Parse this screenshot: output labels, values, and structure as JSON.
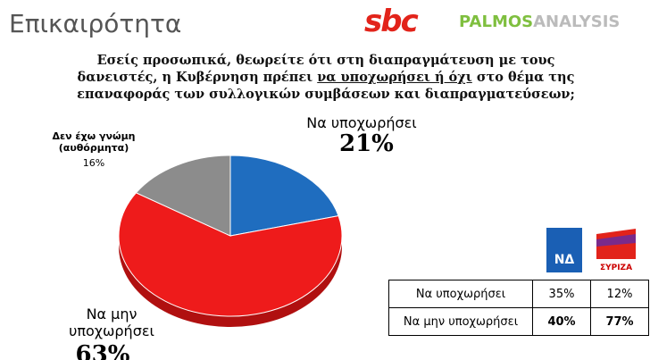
{
  "header": {
    "title": "Επικαιρότητα",
    "logo_left": "sbc",
    "logo_right_a": "PALMOS",
    "logo_right_b": "ANALYSIS"
  },
  "chart_data": {
    "type": "pie",
    "question": [
      "Εσείς προσωπικά, θεωρείτε ότι στη διαπραγμάτευση με τους δανειστές, η Κυβέρνηση πρέπει ",
      "να υποχωρήσει ή όχι",
      " στο θέμα της επαναφοράς των συλλογικών συμβάσεων και διαπραγματεύσεων;"
    ],
    "categories": [
      "Να υποχωρήσει",
      "Να μην υποχωρήσει",
      "Δεν έχω γνώμη (αυθόρμητα)"
    ],
    "values": [
      21,
      63,
      16
    ],
    "value_labels": [
      "21%",
      "63%",
      "16%"
    ],
    "colors": [
      "#1f6dbf",
      "#ee1b1b",
      "#8c8c8c"
    ]
  },
  "table": {
    "parties": [
      "ΝΔ",
      "ΣΥΡΙΖΑ"
    ],
    "rows": [
      [
        "Να υποχωρήσει",
        "35%",
        "12%"
      ],
      [
        "Να μην υποχωρήσει",
        "40%",
        "77%"
      ]
    ]
  }
}
